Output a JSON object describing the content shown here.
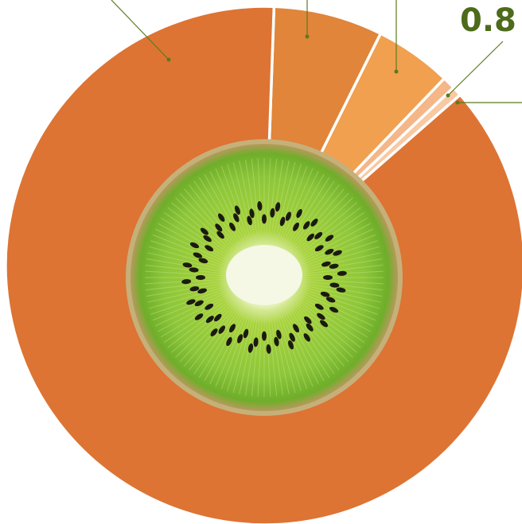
{
  "chart_data": {
    "type": "donut",
    "categories": [
      null,
      null,
      null,
      null,
      null
    ],
    "values": [
      6.8,
      4.8,
      0.8,
      0.6,
      87.0
    ],
    "colors": [
      "#e0853a",
      "#f0a04f",
      "#f5b688",
      "#f8c9a3",
      "#dd7433"
    ],
    "start_angle": 2
  }
}
